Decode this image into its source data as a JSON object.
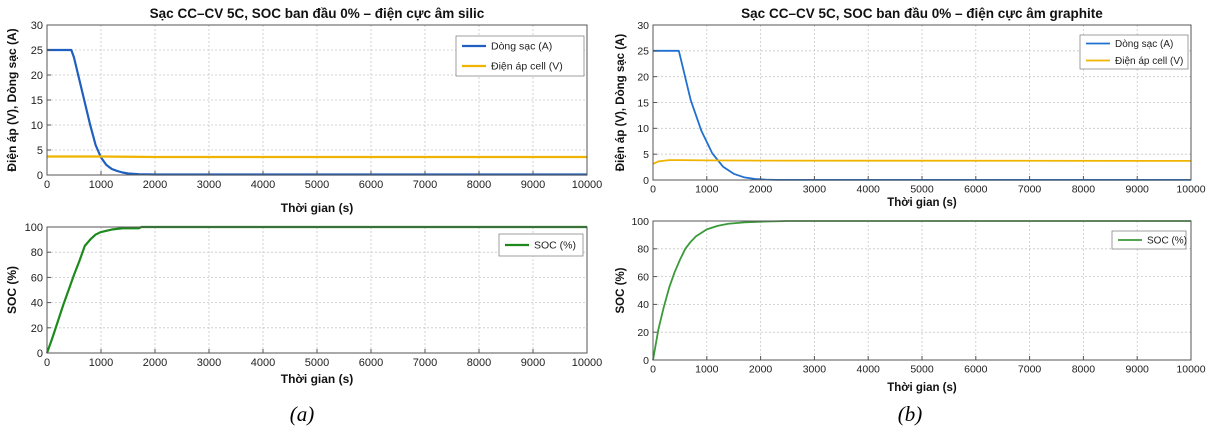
{
  "captions": [
    "(a)",
    "(b)"
  ],
  "panels": [
    {
      "chart_data": [
        {
          "type": "line",
          "title": "Sạc CC–CV 5C, SOC ban đầu 0% – điện cực âm silic",
          "xlabel": "Thời gian (s)",
          "ylabel": "Điện áp (V), Dòng sạc (A)",
          "xlim": [
            0,
            10000
          ],
          "ylim": [
            0,
            30
          ],
          "xticks": [
            0,
            1000,
            2000,
            3000,
            4000,
            5000,
            6000,
            7000,
            8000,
            9000,
            10000
          ],
          "yticks": [
            0,
            5,
            10,
            15,
            20,
            25,
            30
          ],
          "grid": true,
          "legend": "top-right",
          "series": [
            {
              "name": "Dòng sạc (A)",
              "color": "#1f5fbf",
              "x": [
                0,
                450,
                500,
                600,
                700,
                800,
                900,
                1000,
                1100,
                1200,
                1300,
                1400,
                1500,
                1700,
                2000,
                3000,
                10000
              ],
              "y": [
                25,
                25,
                23.5,
                19,
                14.5,
                10,
                6,
                3.5,
                2,
                1.2,
                0.8,
                0.5,
                0.3,
                0.15,
                0.1,
                0.1,
                0.1
              ]
            },
            {
              "name": "Điện áp cell (V)",
              "color": "#f0b400",
              "x": [
                0,
                1000,
                1500,
                2000,
                10000
              ],
              "y": [
                3.7,
                3.7,
                3.65,
                3.6,
                3.6
              ]
            }
          ]
        },
        {
          "type": "line",
          "xlabel": "Thời gian (s)",
          "ylabel": "SOC (%)",
          "xlim": [
            0,
            10000
          ],
          "ylim": [
            0,
            100
          ],
          "xticks": [
            0,
            1000,
            2000,
            3000,
            4000,
            5000,
            6000,
            7000,
            8000,
            9000,
            10000
          ],
          "yticks": [
            0,
            20,
            40,
            60,
            80,
            100
          ],
          "grid": true,
          "legend": "top-right",
          "series": [
            {
              "name": "SOC (%)",
              "color": "#1e8a1e",
              "x": [
                0,
                100,
                200,
                300,
                400,
                500,
                600,
                700,
                800,
                900,
                1000,
                1100,
                1200,
                1400,
                1700,
                1750,
                2000,
                10000
              ],
              "y": [
                0,
                12,
                25,
                38,
                50,
                62,
                73,
                85,
                90,
                94,
                96,
                97,
                98,
                99,
                99,
                100,
                100,
                100
              ]
            }
          ]
        }
      ]
    },
    {
      "chart_data": [
        {
          "type": "line",
          "title": "Sạc CC–CV 5C, SOC ban đầu 0% – điện cực âm graphite",
          "xlabel": "Thời gian (s)",
          "ylabel": "Điện áp (V), Dòng sạc (A)",
          "xlim": [
            0,
            10000
          ],
          "ylim": [
            0,
            30
          ],
          "xticks": [
            0,
            1000,
            2000,
            3000,
            4000,
            5000,
            6000,
            7000,
            8000,
            9000,
            10000
          ],
          "yticks": [
            0,
            5,
            10,
            15,
            20,
            25,
            30
          ],
          "grid": true,
          "legend": "top-right",
          "series": [
            {
              "name": "Dòng sạc (A)",
              "color": "#2070d0",
              "x": [
                0,
                480,
                550,
                700,
                900,
                1100,
                1300,
                1500,
                1700,
                1900,
                2100,
                2300,
                10000
              ],
              "y": [
                25,
                25,
                22,
                15.5,
                9.5,
                5.2,
                2.6,
                1.2,
                0.5,
                0.2,
                0.08,
                0.03,
                0.02
              ]
            },
            {
              "name": "Điện áp cell (V)",
              "color": "#f0b400",
              "x": [
                0,
                100,
                300,
                500,
                1000,
                2000,
                10000
              ],
              "y": [
                3.1,
                3.6,
                3.85,
                3.85,
                3.8,
                3.75,
                3.7
              ]
            }
          ]
        },
        {
          "type": "line",
          "xlabel": "Thời gian (s)",
          "ylabel": "SOC (%)",
          "xlim": [
            0,
            10000
          ],
          "ylim": [
            0,
            100
          ],
          "xticks": [
            0,
            1000,
            2000,
            3000,
            4000,
            5000,
            6000,
            7000,
            8000,
            9000,
            10000
          ],
          "yticks": [
            0,
            20,
            40,
            60,
            80,
            100
          ],
          "grid": true,
          "legend": "top-right",
          "series": [
            {
              "name": "SOC (%)",
              "color": "#3a9a3a",
              "x": [
                0,
                100,
                200,
                300,
                400,
                500,
                600,
                700,
                800,
                1000,
                1200,
                1400,
                1700,
                2000,
                2500,
                3000,
                10000
              ],
              "y": [
                0,
                22,
                38,
                52,
                63,
                72,
                80,
                85,
                89,
                94,
                96.5,
                98,
                99,
                99.5,
                100,
                100,
                100
              ]
            }
          ]
        }
      ]
    }
  ]
}
